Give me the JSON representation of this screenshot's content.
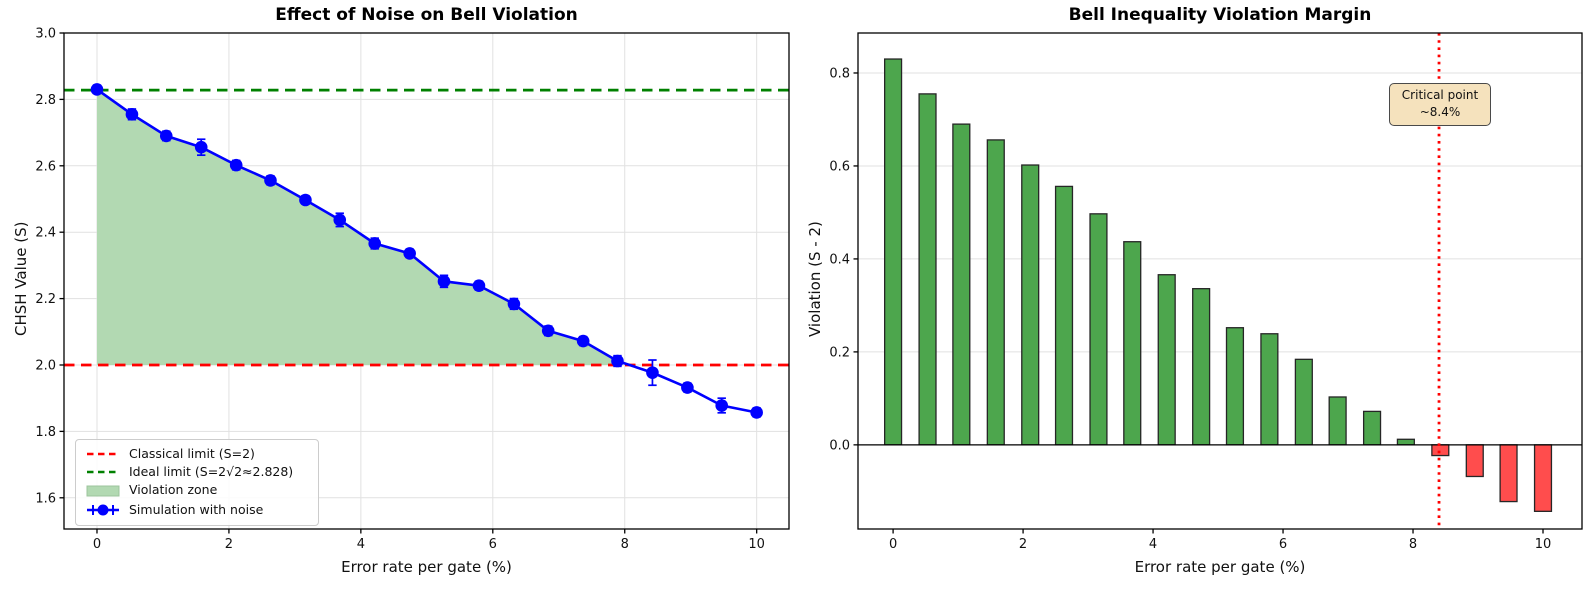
{
  "figure": {
    "background": "#ffffff"
  },
  "chart_data": [
    {
      "type": "line",
      "title": "Effect of Noise on Bell Violation",
      "xlabel": "Error rate per gate (%)",
      "ylabel": "CHSH Value (S)",
      "xlim": [
        -0.5,
        10.49
      ],
      "ylim": [
        1.506,
        3.0
      ],
      "grid": "both",
      "xtick_labels": [
        "0",
        "2",
        "4",
        "6",
        "8",
        "10"
      ],
      "xtick_values": [
        0,
        2,
        4,
        6,
        8,
        10
      ],
      "ytick_labels": [
        "1.6",
        "1.8",
        "2.0",
        "2.2",
        "2.4",
        "2.6",
        "2.8",
        "3.0"
      ],
      "ytick_values": [
        1.6,
        1.8,
        2.0,
        2.2,
        2.4,
        2.6,
        2.8,
        3.0
      ],
      "x": [
        0,
        0.53,
        1.05,
        1.58,
        2.11,
        2.63,
        3.16,
        3.68,
        4.21,
        4.74,
        5.26,
        5.79,
        6.32,
        6.84,
        7.37,
        7.89,
        8.42,
        8.95,
        9.47,
        10
      ],
      "y": [
        2.83,
        2.755,
        2.69,
        2.656,
        2.602,
        2.556,
        2.497,
        2.437,
        2.366,
        2.336,
        2.252,
        2.239,
        2.184,
        2.103,
        2.072,
        2.012,
        1.977,
        1.932,
        1.878,
        1.857
      ],
      "yerr": [
        0.012,
        0.016,
        0.014,
        0.024,
        0.014,
        0.013,
        0.012,
        0.02,
        0.016,
        0.012,
        0.018,
        0.013,
        0.016,
        0.014,
        0.013,
        0.016,
        0.038,
        0.013,
        0.022,
        0.013
      ],
      "classical_limit": 2.0,
      "ideal_limit": 2.828,
      "violation_zone_end_index": 15,
      "legend": [
        {
          "label": "Classical limit (S=2)",
          "type": "dashed-line",
          "color": "#ff0000"
        },
        {
          "label": "Ideal limit (S=2√2≈2.828)",
          "type": "dashed-line",
          "color": "#008000"
        },
        {
          "label": "Violation zone",
          "type": "patch",
          "color": "#b2d9b2"
        },
        {
          "label": "Simulation with noise",
          "type": "errorbar-line",
          "color": "#0000ff"
        }
      ],
      "colors": {
        "line": "#0000ff",
        "classical": "#ff0000",
        "ideal": "#008000",
        "zone": "#b2d9b2",
        "grid": "#e1e1e1"
      }
    },
    {
      "type": "bar",
      "title": "Bell Inequality Violation Margin",
      "xlabel": "Error rate per gate (%)",
      "ylabel": "Violation (S - 2)",
      "xlim": [
        -0.54,
        10.6
      ],
      "ylim": [
        -0.181,
        0.886
      ],
      "grid": "y",
      "xtick_labels": [
        "0",
        "2",
        "4",
        "6",
        "8",
        "10"
      ],
      "xtick_values": [
        0,
        2,
        4,
        6,
        8,
        10
      ],
      "ytick_labels": [
        "0.0",
        "0.2",
        "0.4",
        "0.6",
        "0.8"
      ],
      "ytick_values": [
        0,
        0.2,
        0.4,
        0.6,
        0.8
      ],
      "x": [
        0,
        0.53,
        1.05,
        1.58,
        2.11,
        2.63,
        3.16,
        3.68,
        4.21,
        4.74,
        5.26,
        5.79,
        6.32,
        6.84,
        7.37,
        7.89,
        8.42,
        8.95,
        9.47,
        10
      ],
      "values": [
        0.83,
        0.755,
        0.69,
        0.656,
        0.602,
        0.556,
        0.497,
        0.437,
        0.366,
        0.336,
        0.252,
        0.239,
        0.184,
        0.103,
        0.072,
        0.012,
        -0.023,
        -0.068,
        -0.122,
        -0.143
      ],
      "bar_width_units": 0.26,
      "critical_x": 8.4,
      "annotation": {
        "line1": "Critical point",
        "line2": "~8.4%",
        "bg": "#f5e2bd",
        "border": "#4a4a4a"
      },
      "colors": {
        "positive": "#4da64d",
        "negative": "#ff4d4d",
        "bar_edge": "#262626",
        "critical": "#ff0000",
        "grid": "#e1e1e1"
      }
    }
  ]
}
